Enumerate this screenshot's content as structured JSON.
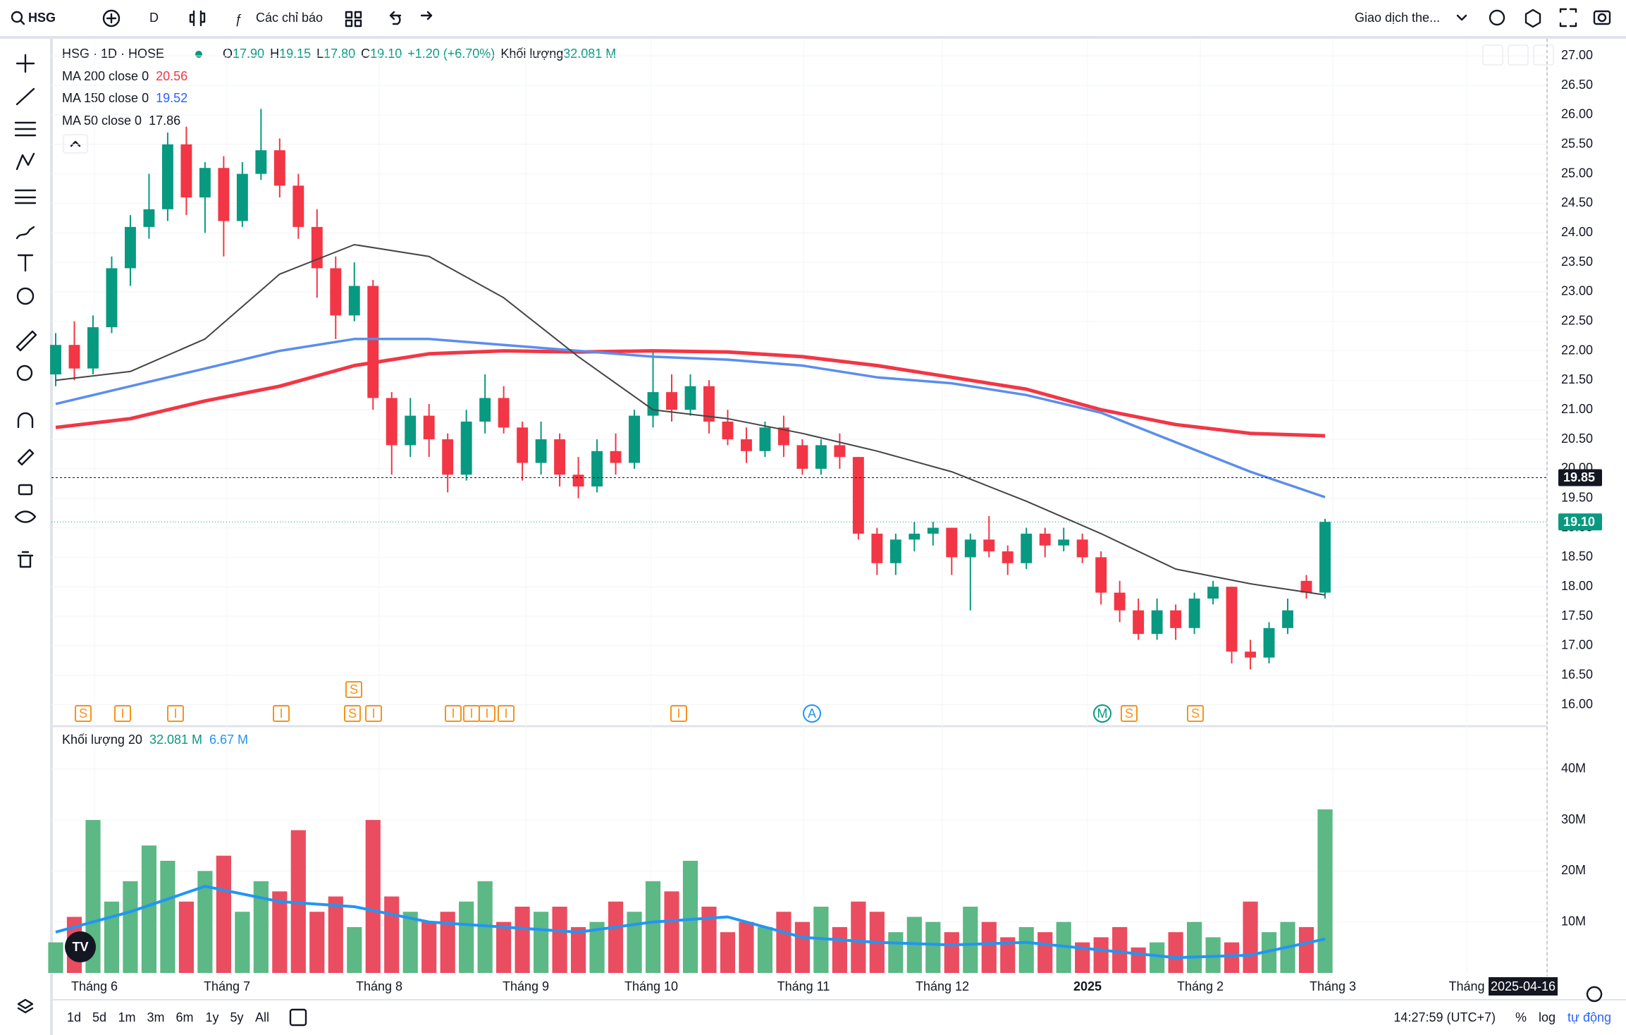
{
  "toolbar": {
    "symbol": "HSG",
    "interval": "D",
    "indicators": "Các chỉ báo",
    "trade": "Giao dịch the..."
  },
  "legend": {
    "title": "HSG · 1D · HOSE",
    "o_label": "O",
    "o": "17.90",
    "h_label": "H",
    "h": "19.15",
    "l_label": "L",
    "l": "17.80",
    "c_label": "C",
    "c": "19.10",
    "change": "+1.20 (+6.70%)",
    "volume_label": "Khối lượng",
    "volume": "32.081 M",
    "volume_pane_title": "Khối lượng 20",
    "volume_pane_value": "32.081 M",
    "volume_pane_ma": "6.67 M"
  },
  "chart_data": {
    "type": "candlestick",
    "ylim": [
      15.66,
      27.29
    ],
    "yticks": [
      {
        "value": 16,
        "label": "16.00"
      },
      {
        "value": 16.5,
        "label": "16.50"
      },
      {
        "value": 17,
        "label": "17.00"
      },
      {
        "value": 17.5,
        "label": "17.50"
      },
      {
        "value": 18,
        "label": "18.00"
      },
      {
        "value": 18.5,
        "label": "18.50"
      },
      {
        "value": 19,
        "label": "19.00"
      },
      {
        "value": 19.5,
        "label": "19.50"
      },
      {
        "value": 20,
        "label": "20.00"
      },
      {
        "value": 20.5,
        "label": "20.50"
      },
      {
        "value": 21,
        "label": "21.00"
      },
      {
        "value": 21.5,
        "label": "21.50"
      },
      {
        "value": 22,
        "label": "22.00"
      },
      {
        "value": 22.5,
        "label": "22.50"
      },
      {
        "value": 23,
        "label": "23.00"
      },
      {
        "value": 23.5,
        "label": "23.50"
      },
      {
        "value": 24,
        "label": "24.00"
      },
      {
        "value": 24.5,
        "label": "24.50"
      },
      {
        "value": 25,
        "label": "25.00"
      },
      {
        "value": 25.5,
        "label": "25.50"
      },
      {
        "value": 26,
        "label": "26.00"
      },
      {
        "value": 26.5,
        "label": "26.50"
      },
      {
        "value": 27,
        "label": "27.00"
      }
    ],
    "up_color": "#089981",
    "down_color": "#f23645",
    "candles": [
      [
        21.6,
        22.3,
        21.4,
        22.1
      ],
      [
        22.1,
        22.5,
        21.5,
        21.7
      ],
      [
        21.7,
        22.6,
        21.6,
        22.4
      ],
      [
        22.4,
        23.6,
        22.3,
        23.4
      ],
      [
        23.4,
        24.3,
        23.1,
        24.1
      ],
      [
        24.1,
        25.0,
        23.9,
        24.4
      ],
      [
        24.4,
        25.7,
        24.2,
        25.5
      ],
      [
        25.5,
        25.8,
        24.3,
        24.6
      ],
      [
        24.6,
        25.2,
        24.0,
        25.1
      ],
      [
        25.1,
        25.3,
        23.6,
        24.2
      ],
      [
        24.2,
        25.2,
        24.1,
        25.0
      ],
      [
        25.0,
        26.1,
        24.9,
        25.4
      ],
      [
        25.4,
        25.6,
        24.6,
        24.8
      ],
      [
        24.8,
        25.0,
        23.9,
        24.1
      ],
      [
        24.1,
        24.4,
        22.9,
        23.4
      ],
      [
        23.4,
        23.6,
        22.2,
        22.6
      ],
      [
        22.6,
        23.5,
        22.5,
        23.1
      ],
      [
        23.1,
        23.2,
        21.0,
        21.2
      ],
      [
        21.2,
        21.3,
        19.9,
        20.4
      ],
      [
        20.4,
        21.2,
        20.2,
        20.9
      ],
      [
        20.9,
        21.1,
        20.2,
        20.5
      ],
      [
        20.5,
        20.6,
        19.6,
        19.9
      ],
      [
        19.9,
        21.0,
        19.8,
        20.8
      ],
      [
        20.8,
        21.6,
        20.6,
        21.2
      ],
      [
        21.2,
        21.4,
        20.6,
        20.7
      ],
      [
        20.7,
        20.8,
        19.8,
        20.1
      ],
      [
        20.1,
        20.8,
        19.9,
        20.5
      ],
      [
        20.5,
        20.6,
        19.7,
        19.9
      ],
      [
        19.9,
        20.2,
        19.5,
        19.7
      ],
      [
        19.7,
        20.5,
        19.6,
        20.3
      ],
      [
        20.3,
        20.6,
        19.9,
        20.1
      ],
      [
        20.1,
        21.0,
        20.0,
        20.9
      ],
      [
        20.9,
        22.0,
        20.7,
        21.3
      ],
      [
        21.3,
        21.6,
        20.8,
        21.0
      ],
      [
        21.0,
        21.6,
        20.9,
        21.4
      ],
      [
        21.4,
        21.5,
        20.6,
        20.8
      ],
      [
        20.8,
        21.0,
        20.4,
        20.5
      ],
      [
        20.5,
        20.7,
        20.1,
        20.3
      ],
      [
        20.3,
        20.8,
        20.2,
        20.7
      ],
      [
        20.7,
        20.9,
        20.2,
        20.4
      ],
      [
        20.4,
        20.5,
        19.9,
        20.0
      ],
      [
        20.0,
        20.5,
        19.9,
        20.4
      ],
      [
        20.4,
        20.6,
        20.0,
        20.2
      ],
      [
        20.2,
        20.2,
        18.8,
        18.9
      ],
      [
        18.9,
        19.0,
        18.2,
        18.4
      ],
      [
        18.4,
        18.9,
        18.2,
        18.8
      ],
      [
        18.8,
        19.1,
        18.6,
        18.9
      ],
      [
        18.9,
        19.1,
        18.7,
        19.0
      ],
      [
        19.0,
        19.0,
        18.2,
        18.5
      ],
      [
        18.5,
        18.9,
        17.6,
        18.8
      ],
      [
        18.8,
        19.2,
        18.5,
        18.6
      ],
      [
        18.6,
        18.7,
        18.2,
        18.4
      ],
      [
        18.4,
        19.0,
        18.3,
        18.9
      ],
      [
        18.9,
        19.0,
        18.5,
        18.7
      ],
      [
        18.7,
        19.0,
        18.6,
        18.8
      ],
      [
        18.8,
        18.9,
        18.4,
        18.5
      ],
      [
        18.5,
        18.6,
        17.7,
        17.9
      ],
      [
        17.9,
        18.1,
        17.4,
        17.6
      ],
      [
        17.6,
        17.8,
        17.1,
        17.2
      ],
      [
        17.2,
        17.8,
        17.1,
        17.6
      ],
      [
        17.6,
        17.7,
        17.1,
        17.3
      ],
      [
        17.3,
        17.9,
        17.2,
        17.8
      ],
      [
        17.8,
        18.1,
        17.7,
        18.0
      ],
      [
        18.0,
        18.0,
        16.7,
        16.9
      ],
      [
        16.9,
        17.1,
        16.6,
        16.8
      ],
      [
        16.8,
        17.4,
        16.7,
        17.3
      ],
      [
        17.3,
        17.8,
        17.2,
        17.6
      ],
      [
        18.1,
        18.2,
        17.8,
        17.9
      ],
      [
        17.9,
        19.15,
        17.8,
        19.1
      ]
    ],
    "series": [
      {
        "name": "MA 200 close 0",
        "color": "#f23645",
        "values": [
          20.7,
          20.85,
          21.15,
          21.4,
          21.75,
          21.95,
          22.0,
          21.98,
          22.0,
          21.98,
          21.9,
          21.75,
          21.55,
          21.35,
          21.0,
          20.75,
          20.6,
          20.56
        ]
      },
      {
        "name": "MA 150 close 0",
        "color": "#5b8def",
        "values": [
          21.1,
          21.4,
          21.7,
          22.0,
          22.2,
          22.2,
          22.1,
          22.0,
          21.9,
          21.85,
          21.75,
          21.55,
          21.45,
          21.25,
          20.95,
          20.45,
          19.95,
          19.52
        ]
      },
      {
        "name": "MA 50 close 0",
        "color": "#444444",
        "values": [
          21.5,
          21.65,
          22.2,
          23.3,
          23.8,
          23.6,
          22.9,
          21.9,
          21.0,
          20.85,
          20.6,
          20.3,
          19.95,
          19.45,
          18.9,
          18.3,
          18.05,
          17.86
        ]
      }
    ],
    "price_tags": [
      {
        "value": 19.85,
        "label": "19.85",
        "color": "#131722"
      },
      {
        "value": 19.1,
        "label": "19.10",
        "color": "#089981"
      }
    ],
    "volume": {
      "ylim": [
        0,
        48.4
      ],
      "yticks": [
        {
          "value": 10,
          "label": "10M"
        },
        {
          "value": 20,
          "label": "20M"
        },
        {
          "value": 30,
          "label": "30M"
        },
        {
          "value": 40,
          "label": "40M"
        }
      ],
      "up_color": "#5cb885",
      "down_color": "#ea4d60",
      "values": [
        6,
        11,
        30,
        14,
        18,
        25,
        22,
        14,
        20,
        23,
        12,
        18,
        16,
        28,
        12,
        15,
        9,
        30,
        15,
        12,
        10,
        12,
        14,
        18,
        10,
        13,
        12,
        13,
        9,
        10,
        14,
        12,
        18,
        16,
        22,
        13,
        8,
        10,
        9,
        12,
        10,
        13,
        9,
        14,
        12,
        8,
        11,
        10,
        8,
        13,
        10,
        7,
        9,
        8,
        10,
        6,
        7,
        9,
        5,
        6,
        8,
        10,
        7,
        6,
        14,
        8,
        10,
        9,
        32.081
      ],
      "ma": {
        "color": "#2196f3",
        "values": [
          8,
          12,
          17,
          14,
          13,
          10,
          9,
          8,
          10,
          11,
          7,
          6,
          5.5,
          6,
          4.5,
          3,
          3.5,
          6.67
        ]
      }
    },
    "time_labels": [
      "Tháng 6",
      "Tháng 7",
      "Tháng 8",
      "Tháng 9",
      "Tháng 10",
      "Tháng 11",
      "Tháng 12",
      "2025",
      "Tháng 2",
      "Tháng 3",
      "Tháng"
    ],
    "date_tag": "2025-04-16",
    "events": [
      "S",
      "I",
      "I",
      "I",
      "S",
      "I",
      "I",
      "I",
      "I",
      "I",
      "I",
      "A",
      "M",
      "S",
      "S",
      "S"
    ]
  },
  "bottom": {
    "ranges": [
      "1d",
      "5d",
      "1m",
      "3m",
      "6m",
      "1y",
      "5y",
      "All"
    ],
    "clock": "14:27:59 (UTC+7)",
    "percent": "%",
    "log": "log",
    "auto": "tự động"
  }
}
